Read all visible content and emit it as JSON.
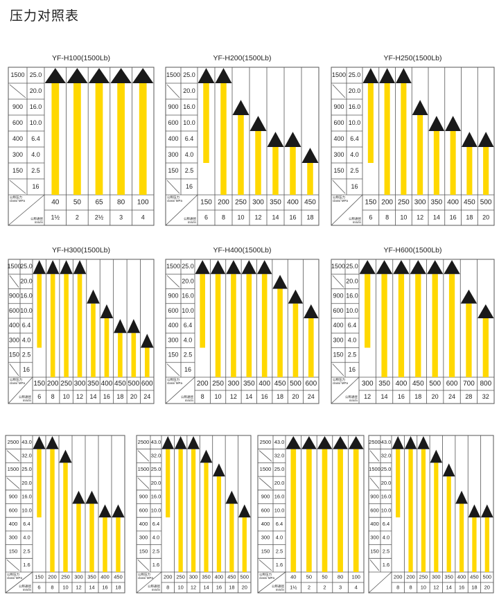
{
  "page_title": "压力对照表",
  "colors": {
    "bar": "#ffd800",
    "arrow": "#1a1a1a",
    "grid": "#555555"
  },
  "corner_labels": {
    "pressure": "公称压力",
    "pressure_unit": "class/ MPa",
    "size": "公称通径",
    "size_unit": "mm/in"
  },
  "chart_data": [
    {
      "type": "bar",
      "title": "YF-H100(1500Lb)",
      "classes": [
        "1500",
        "",
        "900",
        "600",
        "400",
        "300",
        "150",
        ""
      ],
      "mpa": [
        "25.0",
        "20.0",
        "16.0",
        "10.0",
        "6.4",
        "4.0",
        "2.5",
        "16"
      ],
      "sizes_mm": [
        "40",
        "50",
        "65",
        "80",
        "100"
      ],
      "sizes_in": [
        "1½",
        "2",
        "2½",
        "3",
        "4"
      ],
      "max_pressure_mpa": [
        "25.0",
        "25.0",
        "25.0",
        "25.0",
        "25.0"
      ],
      "first_bar_min_mpa": null,
      "corner_text": true
    },
    {
      "type": "bar",
      "title": "YF-H200(1500Lb)",
      "classes": [
        "1500",
        "",
        "900",
        "600",
        "400",
        "300",
        "150",
        ""
      ],
      "mpa": [
        "25.0",
        "20.0",
        "16.0",
        "10.0",
        "6.4",
        "4.0",
        "2.5",
        "16"
      ],
      "sizes_mm": [
        "150",
        "200",
        "250",
        "300",
        "350",
        "400",
        "450"
      ],
      "sizes_in": [
        "6",
        "8",
        "10",
        "12",
        "14",
        "16",
        "18"
      ],
      "max_pressure_mpa": [
        "25.0",
        "25.0",
        "16.0",
        "10.0",
        "6.4",
        "6.4",
        "4.0"
      ],
      "first_bar_min_mpa": "4.0",
      "corner_text": true
    },
    {
      "type": "bar",
      "title": "YF-H250(1500Lb)",
      "classes": [
        "1500",
        "",
        "900",
        "600",
        "400",
        "300",
        "150",
        ""
      ],
      "mpa": [
        "25.0",
        "20.0",
        "16.0",
        "10.0",
        "6.4",
        "4.0",
        "2.5",
        "16"
      ],
      "sizes_mm": [
        "150",
        "200",
        "250",
        "300",
        "350",
        "400",
        "450",
        "500"
      ],
      "sizes_in": [
        "6",
        "8",
        "10",
        "12",
        "14",
        "16",
        "18",
        "20"
      ],
      "max_pressure_mpa": [
        "25.0",
        "25.0",
        "25.0",
        "16.0",
        "10.0",
        "10.0",
        "6.4",
        "6.4"
      ],
      "first_bar_min_mpa": "4.0",
      "corner_text": true
    },
    {
      "type": "bar",
      "title": "YF-H300(1500Lb)",
      "classes": [
        "1500",
        "",
        "900",
        "600",
        "400",
        "300",
        "150",
        ""
      ],
      "mpa": [
        "25.0",
        "20.0",
        "16.0",
        "10.0",
        "6.4",
        "4.0",
        "2.5",
        "16"
      ],
      "sizes_mm": [
        "150",
        "200",
        "250",
        "300",
        "350",
        "400",
        "450",
        "500",
        "600"
      ],
      "sizes_in": [
        "6",
        "8",
        "10",
        "12",
        "14",
        "16",
        "18",
        "20",
        "24"
      ],
      "max_pressure_mpa": [
        "25.0",
        "25.0",
        "25.0",
        "25.0",
        "16.0",
        "10.0",
        "6.4",
        "6.4",
        "4.0"
      ],
      "first_bar_min_mpa": "4.0",
      "corner_text": true
    },
    {
      "type": "bar",
      "title": "YF-H400(1500Lb)",
      "classes": [
        "1500",
        "",
        "900",
        "600",
        "400",
        "300",
        "150",
        ""
      ],
      "mpa": [
        "25.0",
        "20.0",
        "16.0",
        "10.0",
        "6.4",
        "4.0",
        "2.5",
        "16"
      ],
      "sizes_mm": [
        "200",
        "250",
        "300",
        "350",
        "400",
        "450",
        "500",
        "600"
      ],
      "sizes_in": [
        "8",
        "10",
        "12",
        "14",
        "16",
        "18",
        "20",
        "24"
      ],
      "max_pressure_mpa": [
        "25.0",
        "25.0",
        "25.0",
        "25.0",
        "25.0",
        "20.0",
        "16.0",
        "10.0"
      ],
      "first_bar_min_mpa": "4.0",
      "corner_text": true
    },
    {
      "type": "bar",
      "title": "YF-H600(1500Lb)",
      "classes": [
        "1500",
        "",
        "900",
        "600",
        "400",
        "300",
        "150",
        ""
      ],
      "mpa": [
        "25.0",
        "20.0",
        "16.0",
        "10.0",
        "6.4",
        "4.0",
        "2.5",
        "16"
      ],
      "sizes_mm": [
        "300",
        "350",
        "400",
        "450",
        "500",
        "600",
        "700",
        "800"
      ],
      "sizes_in": [
        "12",
        "14",
        "16",
        "18",
        "20",
        "24",
        "28",
        "32"
      ],
      "max_pressure_mpa": [
        "25.0",
        "25.0",
        "25.0",
        "25.0",
        "25.0",
        "25.0",
        "16.0",
        "10.0"
      ],
      "first_bar_min_mpa": "4.0",
      "corner_text": true
    },
    {
      "type": "bar",
      "title": "",
      "classes": [
        "2500",
        "",
        "1500",
        "",
        "900",
        "600",
        "400",
        "300",
        "150",
        ""
      ],
      "mpa": [
        "43.0",
        "32.0",
        "25.0",
        "20.0",
        "16.0",
        "10.0",
        "6.4",
        "4.0",
        "2.5",
        "1.6"
      ],
      "sizes_mm": [
        "150",
        "200",
        "250",
        "300",
        "350",
        "400",
        "450"
      ],
      "sizes_in": [
        "6",
        "8",
        "10",
        "12",
        "14",
        "16",
        "18"
      ],
      "max_pressure_mpa": [
        "43.0",
        "43.0",
        "32.0",
        "16.0",
        "16.0",
        "10.0",
        "10.0"
      ],
      "first_bar_min_mpa": "10.0",
      "corner_text": true
    },
    {
      "type": "bar",
      "title": "",
      "classes": [
        "2500",
        "",
        "1500",
        "",
        "900",
        "600",
        "400",
        "300",
        "150",
        ""
      ],
      "mpa": [
        "43.0",
        "32.0",
        "25.0",
        "20.0",
        "16.0",
        "10.0",
        "6.4",
        "4.0",
        "2.5",
        "1.6"
      ],
      "sizes_mm": [
        "200",
        "250",
        "300",
        "350",
        "400",
        "450",
        "500"
      ],
      "sizes_in": [
        "8",
        "10",
        "12",
        "14",
        "16",
        "18",
        "20"
      ],
      "max_pressure_mpa": [
        "43.0",
        "43.0",
        "43.0",
        "32.0",
        "25.0",
        "16.0",
        "10.0"
      ],
      "first_bar_min_mpa": "10.0",
      "corner_text": true
    },
    {
      "type": "bar",
      "title": "",
      "classes": [
        "2500",
        "",
        "1500",
        "",
        "900",
        "600",
        "400",
        "300",
        "150",
        ""
      ],
      "mpa": [
        "43.0",
        "32.0",
        "25.0",
        "20.0",
        "16.0",
        "10.0",
        "6.4",
        "4.0",
        "2.5",
        "1.6"
      ],
      "sizes_mm": [
        "40",
        "50",
        "50",
        "80",
        "100"
      ],
      "sizes_in": [
        "1½",
        "2",
        "2",
        "3",
        "4"
      ],
      "max_pressure_mpa": [
        "43.0",
        "43.0",
        "43.0",
        "43.0",
        "43.0"
      ],
      "first_bar_min_mpa": null,
      "corner_text": true
    },
    {
      "type": "bar",
      "title": "",
      "classes": [
        "2500",
        "",
        "1500",
        "",
        "900",
        "600",
        "400",
        "300",
        "150",
        ""
      ],
      "mpa": [
        "43.0",
        "32.0",
        "25.0",
        "20.0",
        "16.0",
        "10.0",
        "6.4",
        "4.0",
        "2.5",
        "1.6"
      ],
      "sizes_mm": [
        "200",
        "200",
        "250",
        "300",
        "350",
        "400",
        "450",
        "500"
      ],
      "sizes_in": [
        "8",
        "8",
        "10",
        "12",
        "14",
        "16",
        "18",
        "20"
      ],
      "max_pressure_mpa": [
        "43.0",
        "43.0",
        "43.0",
        "32.0",
        "25.0",
        "16.0",
        "10.0",
        "10.0"
      ],
      "first_bar_min_mpa": "10.0",
      "corner_text": false
    }
  ]
}
